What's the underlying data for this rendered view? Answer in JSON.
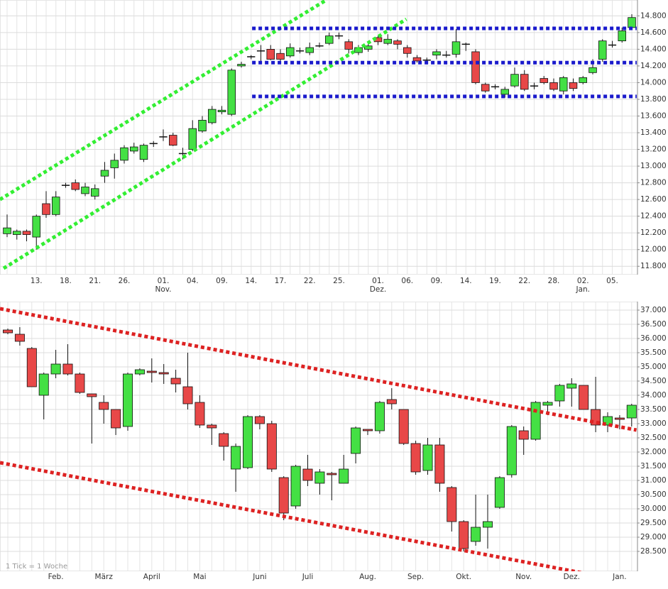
{
  "chart_data": [
    {
      "type": "candlestick",
      "up_color": "#44e044",
      "down_color": "#e84848",
      "grid": true,
      "categories": [
        null,
        null,
        null,
        "13.",
        null,
        null,
        "18.",
        null,
        null,
        "21.",
        null,
        null,
        "26.",
        null,
        null,
        null,
        "01.",
        null,
        null,
        "04.",
        null,
        null,
        "09.",
        null,
        null,
        "14.",
        null,
        null,
        "17.",
        null,
        null,
        "22.",
        null,
        null,
        "25.",
        null,
        null,
        null,
        "01.",
        null,
        null,
        "06.",
        null,
        null,
        "09.",
        null,
        null,
        "14.",
        null,
        null,
        "19.",
        null,
        null,
        "22.",
        null,
        null,
        "28.",
        null,
        null,
        "02.",
        null,
        null,
        "05.",
        null,
        null
      ],
      "month_labels": [
        null,
        null,
        null,
        null,
        null,
        null,
        null,
        null,
        null,
        null,
        null,
        null,
        null,
        null,
        null,
        null,
        "Nov.",
        null,
        null,
        null,
        null,
        null,
        null,
        null,
        null,
        null,
        null,
        null,
        null,
        null,
        null,
        null,
        null,
        null,
        null,
        null,
        null,
        null,
        "Dez.",
        null,
        null,
        null,
        null,
        null,
        null,
        null,
        null,
        null,
        null,
        null,
        null,
        null,
        null,
        null,
        null,
        null,
        null,
        null,
        null,
        "Jan.",
        null,
        null,
        null,
        null,
        null
      ],
      "open": [
        12190,
        12180,
        12220,
        12150,
        12550,
        12420,
        12770,
        12800,
        12670,
        12640,
        12880,
        12980,
        13070,
        13180,
        13080,
        13270,
        13350,
        13370,
        13150,
        13200,
        13420,
        13520,
        13650,
        13620,
        14200,
        14310,
        14380,
        14400,
        14350,
        14320,
        14380,
        14360,
        14440,
        14470,
        14560,
        14490,
        14360,
        14400,
        14540,
        14470,
        14500,
        14420,
        14300,
        14270,
        14330,
        14330,
        14340,
        14460,
        14370,
        13980,
        13950,
        13860,
        13960,
        14100,
        13960,
        14050,
        14000,
        13900,
        14000,
        14000,
        14120,
        14280,
        14450,
        14500,
        14660
      ],
      "high": [
        12420,
        12240,
        12240,
        12420,
        12700,
        12700,
        12800,
        12840,
        12800,
        12780,
        13050,
        13150,
        13250,
        13280,
        13270,
        13300,
        13440,
        13400,
        13220,
        13550,
        13600,
        13720,
        13720,
        14170,
        14250,
        14330,
        14450,
        14450,
        14400,
        14470,
        14420,
        14480,
        14480,
        14600,
        14600,
        14520,
        14450,
        14500,
        14560,
        14580,
        14520,
        14450,
        14330,
        14300,
        14400,
        14380,
        14640,
        14480,
        14400,
        14000,
        13980,
        13950,
        14180,
        14150,
        14000,
        14080,
        14050,
        14080,
        14050,
        14080,
        14280,
        14520,
        14500,
        14660,
        14820
      ],
      "low": [
        12150,
        12120,
        12100,
        12000,
        12380,
        12400,
        12740,
        12700,
        12640,
        12600,
        12800,
        12850,
        13030,
        13150,
        13050,
        13230,
        13300,
        13240,
        13080,
        13180,
        13400,
        13500,
        13620,
        13600,
        14180,
        14280,
        14250,
        14270,
        14250,
        14300,
        14350,
        14330,
        14420,
        14450,
        14520,
        14350,
        14330,
        14370,
        14450,
        14450,
        14400,
        14300,
        14240,
        14220,
        14280,
        14300,
        14300,
        14380,
        13980,
        13880,
        13920,
        13820,
        13940,
        13900,
        13920,
        13980,
        13900,
        13860,
        13900,
        13980,
        14100,
        14250,
        14420,
        14480,
        14640
      ],
      "close": [
        12260,
        12220,
        12180,
        12400,
        12420,
        12630,
        12760,
        12720,
        12750,
        12730,
        12950,
        13070,
        13220,
        13230,
        13250,
        13270,
        13350,
        13250,
        13150,
        13450,
        13550,
        13680,
        13670,
        14150,
        14220,
        14310,
        14380,
        14280,
        14280,
        14420,
        14380,
        14420,
        14440,
        14560,
        14560,
        14400,
        14420,
        14440,
        14490,
        14520,
        14460,
        14350,
        14260,
        14270,
        14370,
        14330,
        14490,
        14460,
        14000,
        13900,
        13950,
        13920,
        14100,
        13920,
        13960,
        14000,
        13920,
        14060,
        13930,
        14060,
        14180,
        14500,
        14450,
        14620,
        14780
      ],
      "ylim": [
        11700,
        14990
      ],
      "yticks": [
        {
          "value": 11800,
          "label": "11.800"
        },
        {
          "value": 12000,
          "label": "12.000"
        },
        {
          "value": 12200,
          "label": "12.200"
        },
        {
          "value": 12400,
          "label": "12.400"
        },
        {
          "value": 12600,
          "label": "12.600"
        },
        {
          "value": 12800,
          "label": "12.800"
        },
        {
          "value": 13000,
          "label": "13.000"
        },
        {
          "value": 13200,
          "label": "13.200"
        },
        {
          "value": 13400,
          "label": "13.400"
        },
        {
          "value": 13600,
          "label": "13.600"
        },
        {
          "value": 13800,
          "label": "13.800"
        },
        {
          "value": 14000,
          "label": "14.000"
        },
        {
          "value": 14200,
          "label": "14.200"
        },
        {
          "value": 14400,
          "label": "14.400"
        },
        {
          "value": 14600,
          "label": "14.600"
        },
        {
          "value": 14800,
          "label": "14.800"
        }
      ],
      "trendlines": [
        {
          "color": "#33ee33",
          "x": [
            -0.73,
            32.7
          ],
          "values": [
            12600,
            14990
          ]
        },
        {
          "color": "#33ee33",
          "x": [
            -0.36,
            40.9
          ],
          "values": [
            11775,
            14760
          ]
        },
        {
          "color": "#1a1acc",
          "x": [
            25.1,
            64.5
          ],
          "values": [
            14650,
            14650
          ]
        },
        {
          "color": "#1a1acc",
          "x": [
            25.1,
            64.5
          ],
          "values": [
            14240,
            14240
          ]
        },
        {
          "color": "#1a1acc",
          "x": [
            25.1,
            64.5
          ],
          "values": [
            13835,
            13835
          ]
        }
      ]
    },
    {
      "type": "candlestick",
      "up_color": "#44e044",
      "down_color": "#e84848",
      "grid": true,
      "note": "1 Tick = 1 Woche",
      "categories": [
        null,
        null,
        null,
        null,
        "Feb.",
        null,
        null,
        null,
        "März",
        null,
        null,
        null,
        "April",
        null,
        null,
        null,
        "Mai",
        null,
        null,
        null,
        null,
        "Juni",
        null,
        null,
        null,
        "Juli",
        null,
        null,
        null,
        null,
        "Aug.",
        null,
        null,
        null,
        "Sep.",
        null,
        null,
        null,
        "Okt.",
        null,
        null,
        null,
        null,
        "Nov.",
        null,
        null,
        null,
        "Dez.",
        null,
        null,
        null,
        "Jan.",
        null
      ],
      "open": [
        36300,
        36150,
        35650,
        34000,
        34750,
        35100,
        34750,
        34050,
        33750,
        33500,
        32900,
        34750,
        34850,
        34800,
        34600,
        34300,
        33750,
        32950,
        32650,
        31400,
        31450,
        33250,
        33000,
        31100,
        30100,
        31400,
        30900,
        31250,
        30900,
        31950,
        32800,
        32750,
        33850,
        33500,
        32300,
        31350,
        32250,
        30750,
        29550,
        28850,
        29350,
        30050,
        31200,
        32750,
        32450,
        33650,
        33800,
        34250,
        34350,
        33500,
        32950,
        33200,
        33200
      ],
      "high": [
        36350,
        36400,
        35700,
        34800,
        35600,
        35800,
        34800,
        34050,
        34000,
        33500,
        34800,
        34950,
        35300,
        35100,
        34900,
        35500,
        34000,
        33000,
        32700,
        32300,
        33300,
        33300,
        33100,
        31150,
        31550,
        31900,
        31400,
        31300,
        31900,
        32900,
        32800,
        33800,
        34250,
        33500,
        32400,
        32500,
        32500,
        30800,
        29600,
        30500,
        30500,
        31150,
        32950,
        32900,
        33800,
        33800,
        34400,
        34600,
        34350,
        34650,
        33400,
        33300,
        33700
      ],
      "low": [
        36150,
        35750,
        34300,
        33150,
        34600,
        34700,
        34050,
        32300,
        33000,
        32600,
        32750,
        34700,
        34450,
        34400,
        34100,
        33500,
        32850,
        32250,
        31700,
        30600,
        31400,
        32800,
        31300,
        29600,
        30000,
        30800,
        30500,
        30300,
        30900,
        31600,
        32600,
        32650,
        33500,
        32250,
        31200,
        31200,
        30600,
        29200,
        28500,
        28700,
        28600,
        30000,
        31100,
        31900,
        32400,
        33300,
        33600,
        33600,
        33500,
        32700,
        32700,
        32800,
        32900
      ],
      "close": [
        36200,
        35900,
        34300,
        34750,
        35100,
        34750,
        34100,
        33950,
        33500,
        32850,
        34750,
        34900,
        34800,
        34750,
        34400,
        33700,
        32950,
        32850,
        32200,
        32200,
        33250,
        33000,
        31400,
        29850,
        31500,
        31000,
        31300,
        31200,
        31400,
        32850,
        32750,
        33750,
        33700,
        32300,
        31300,
        32250,
        30900,
        29550,
        28600,
        29350,
        29550,
        31100,
        32900,
        32450,
        33750,
        33750,
        34350,
        34400,
        33500,
        32950,
        33250,
        33150,
        33650
      ],
      "ylim": [
        27800,
        37300
      ],
      "yticks": [
        {
          "value": 28500,
          "label": "28.500"
        },
        {
          "value": 29000,
          "label": "29.000"
        },
        {
          "value": 29500,
          "label": "29.500"
        },
        {
          "value": 30000,
          "label": "30.000"
        },
        {
          "value": 30500,
          "label": "30.500"
        },
        {
          "value": 31000,
          "label": "31.000"
        },
        {
          "value": 31500,
          "label": "31.500"
        },
        {
          "value": 32000,
          "label": "32.000"
        },
        {
          "value": 32500,
          "label": "32.500"
        },
        {
          "value": 33000,
          "label": "33.000"
        },
        {
          "value": 33500,
          "label": "33.500"
        },
        {
          "value": 34000,
          "label": "34.000"
        },
        {
          "value": 34500,
          "label": "34.500"
        },
        {
          "value": 35000,
          "label": "35.000"
        },
        {
          "value": 35500,
          "label": "35.500"
        },
        {
          "value": 36000,
          "label": "36.000"
        },
        {
          "value": 36500,
          "label": "36.500"
        },
        {
          "value": 37000,
          "label": "37.000"
        }
      ],
      "trendlines": [
        {
          "color": "#dd2222",
          "x": [
            -0.65,
            52.4
          ],
          "values": [
            37050,
            32775
          ]
        },
        {
          "color": "#dd2222",
          "x": [
            -0.65,
            49.35
          ],
          "values": [
            31625,
            27625
          ]
        }
      ]
    }
  ]
}
